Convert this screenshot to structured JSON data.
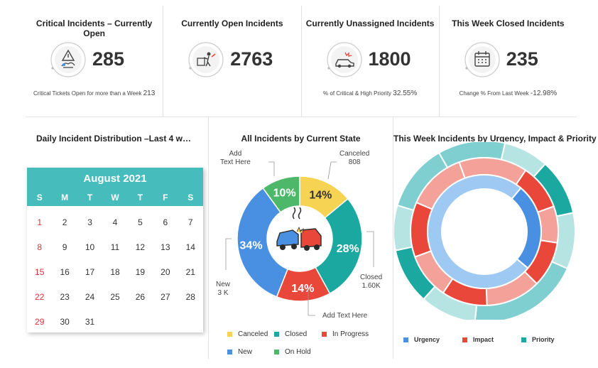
{
  "kpis": [
    {
      "title": "Critical Incidents – Currently Open",
      "value": "285",
      "foot_label": "Critical Tickets Open for more than a Week",
      "foot_value": "213",
      "icon": "warning-sign-icon"
    },
    {
      "title": "Currently Open Incidents",
      "value": "2763",
      "foot_label": "",
      "foot_value": "",
      "icon": "worker-repair-icon"
    },
    {
      "title": "Currently Unassigned Incidents",
      "value": "1800",
      "foot_label": "% of Critical & High Priority",
      "foot_value": "32.55%",
      "icon": "car-crash-icon"
    },
    {
      "title": "This Week Closed Incidents",
      "value": "235",
      "foot_label": "Change % From Last Week",
      "foot_value": "-12.98%",
      "icon": "calendar-icon"
    }
  ],
  "calendar": {
    "panel_title": "Daily Incident Distribution –Last 4 w…",
    "month": "August 2021",
    "dows": [
      "S",
      "M",
      "T",
      "W",
      "T",
      "F",
      "S"
    ],
    "weeks": [
      [
        "1",
        "2",
        "3",
        "4",
        "5",
        "6",
        "7"
      ],
      [
        "8",
        "9",
        "10",
        "11",
        "12",
        "13",
        "14"
      ],
      [
        "15",
        "16",
        "17",
        "18",
        "19",
        "20",
        "21"
      ],
      [
        "22",
        "23",
        "24",
        "25",
        "26",
        "27",
        "28"
      ],
      [
        "29",
        "30",
        "31",
        "",
        "",
        "",
        ""
      ]
    ],
    "weekend_color": "#e0303a",
    "header_color": "#46bcbc"
  },
  "chart_data": [
    {
      "type": "pie",
      "title": "All Incidents by Current State",
      "slices": [
        {
          "name": "Canceled",
          "value": 14,
          "label": "14%",
          "color": "#f7d354"
        },
        {
          "name": "Closed",
          "value": 28,
          "label": "28%",
          "color": "#1aa8a0"
        },
        {
          "name": "In Progress",
          "value": 14,
          "label": "14%",
          "color": "#e9473a"
        },
        {
          "name": "New",
          "value": 34,
          "label": "34%",
          "color": "#4a90e2"
        },
        {
          "name": "On Hold",
          "value": 10,
          "label": "10%",
          "color": "#4db86a"
        }
      ],
      "annotations": [
        {
          "line1": "Add",
          "line2": "Text Here"
        },
        {
          "line1": "Canceled",
          "line2": "808"
        },
        {
          "line1": "Closed",
          "line2": "1.60K"
        },
        {
          "line1": "New",
          "line2": "3 K"
        },
        {
          "line1": "Add Text Here",
          "line2": ""
        }
      ],
      "legend": [
        "Canceled",
        "Closed",
        "In Progress",
        "New",
        "On Hold"
      ],
      "legend_placement": "bottom"
    },
    {
      "type": "pie",
      "title": "This Week Incidents by Urgency, Impact & Priority",
      "rings": [
        {
          "name": "Priority",
          "colors": [
            "#7fcfd0",
            "#b6e4e3",
            "#1aa8a0",
            "#b6e4e3"
          ],
          "values": [
            12,
            8,
            10,
            10,
            20,
            10,
            10,
            8,
            12
          ]
        },
        {
          "name": "Impact",
          "colors": [
            "#f4a19a",
            "#e9473a"
          ],
          "values": [
            15,
            10,
            8,
            10,
            12,
            10,
            10,
            12,
            13
          ]
        },
        {
          "name": "Urgency",
          "colors": [
            "#9ec9f2",
            "#4a90e2"
          ],
          "values": [
            75,
            25
          ]
        }
      ],
      "legend": [
        {
          "name": "Urgency",
          "color": "#4a90e2"
        },
        {
          "name": "Impact",
          "color": "#e9473a"
        },
        {
          "name": "Priority",
          "color": "#1aa8a0"
        }
      ],
      "legend_placement": "bottom"
    }
  ]
}
